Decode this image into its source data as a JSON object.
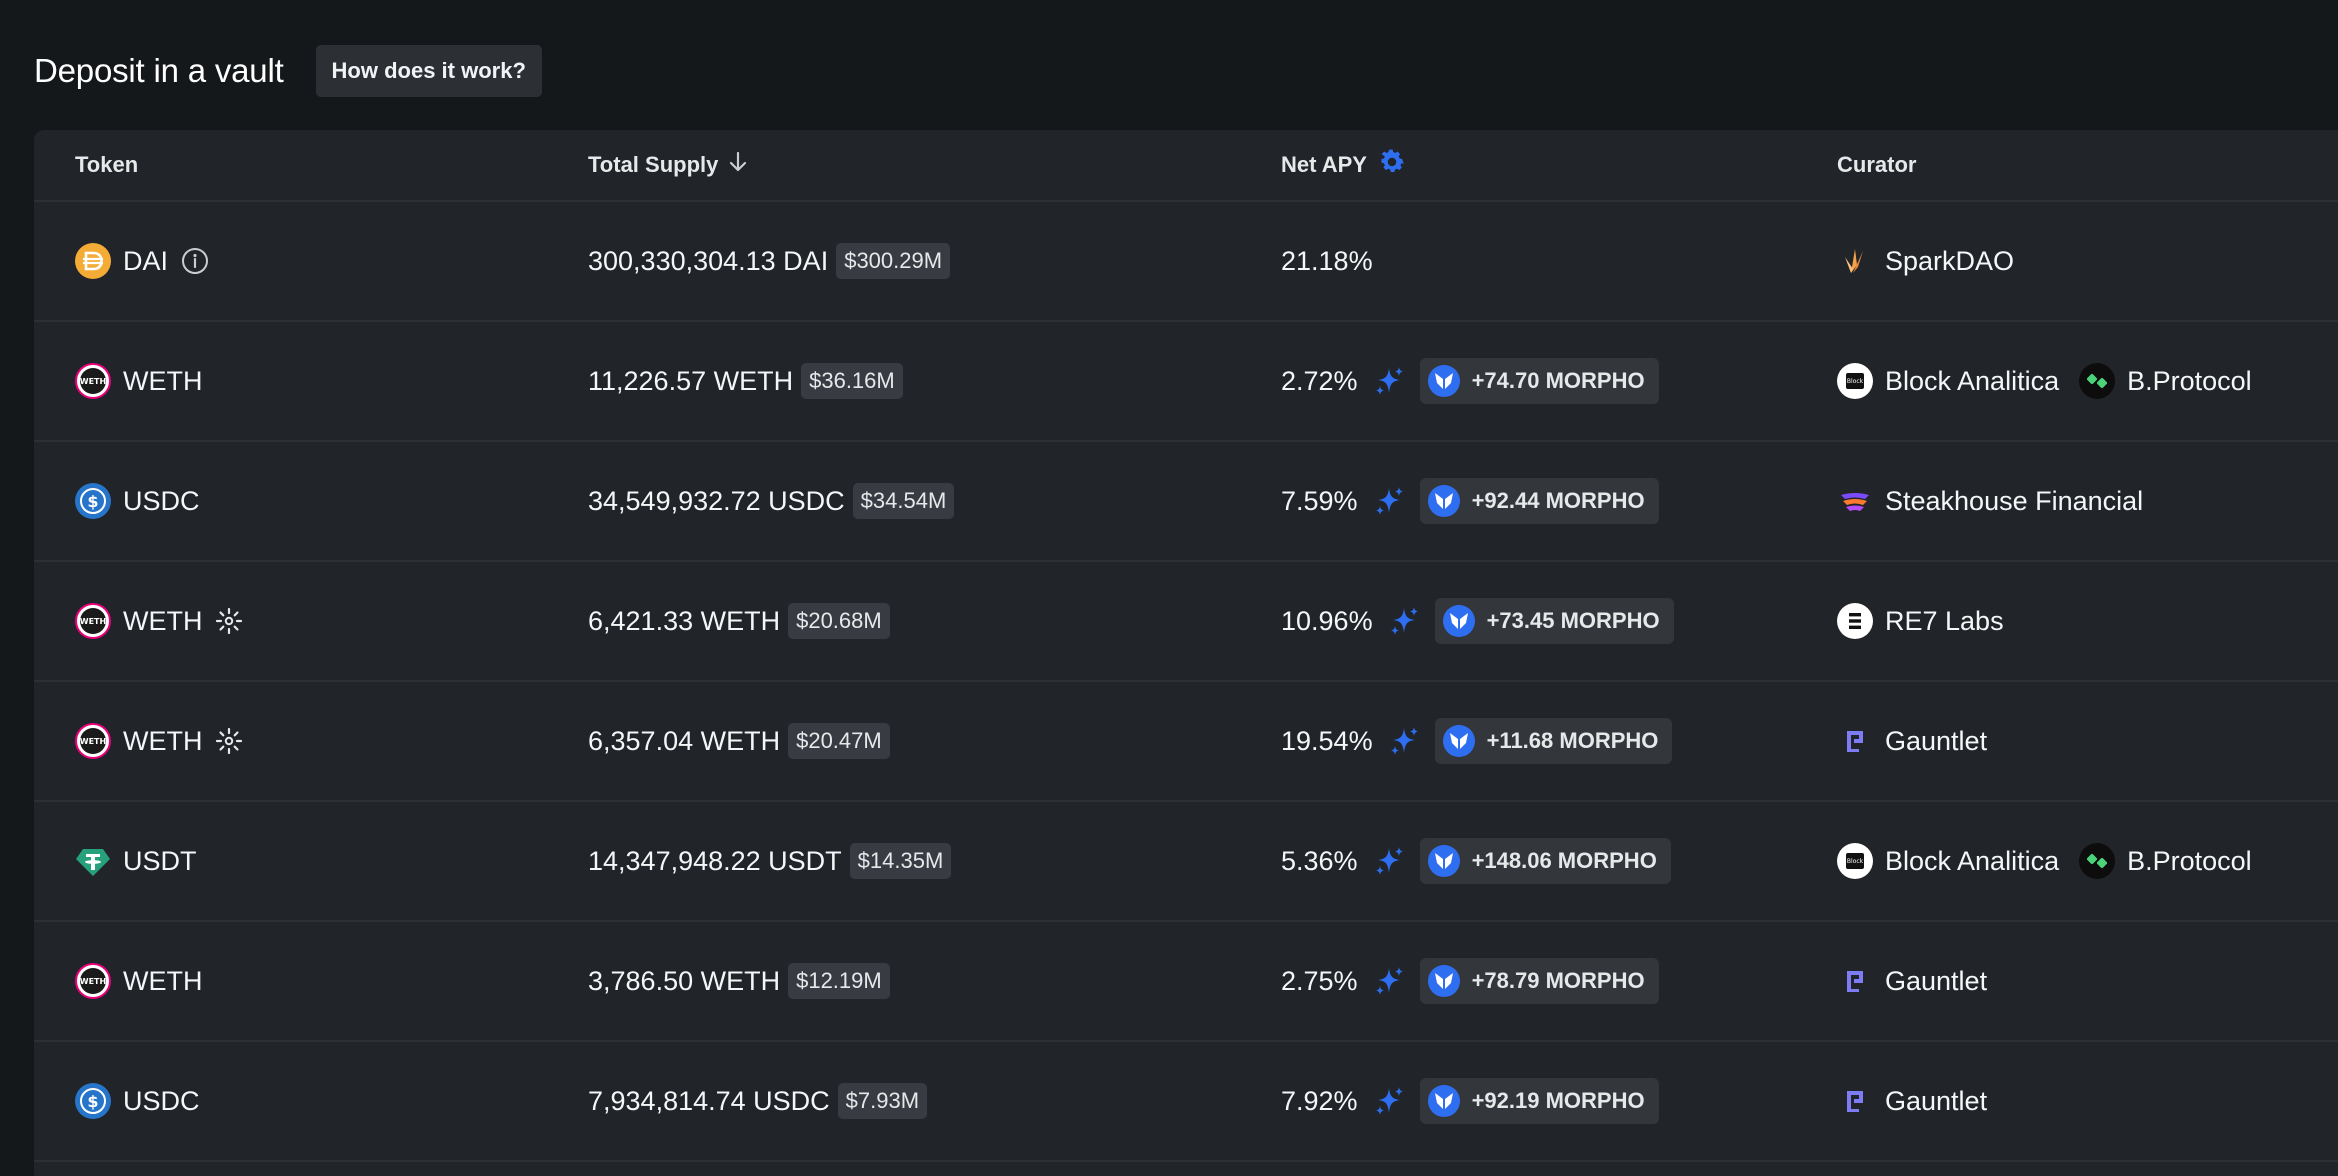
{
  "header": {
    "title": "Deposit in a vault",
    "help_label": "How does it work?"
  },
  "columns": {
    "token": "Token",
    "supply": "Total Supply",
    "apy": "Net APY",
    "curator": "Curator"
  },
  "icons": {
    "sort": "arrow-down-icon",
    "apy_settings": "gear-icon",
    "sparkle": "sparkle-icon",
    "morpho": "morpho-butterfly-icon",
    "info": "info-icon",
    "vault_extra": "sun-burst-icon"
  },
  "colors": {
    "accent_blue": "#2e6ff2",
    "dai": "#f5ac37",
    "usdc": "#2775ca",
    "usdt": "#26a17b",
    "weth_ring": "#e6007a"
  },
  "rows": [
    {
      "token": "DAI",
      "token_icon": "dai",
      "badge": "info",
      "supply": "300,330,304.13 DAI",
      "usd": "$300.29M",
      "apy": "21.18%",
      "reward": "",
      "curators": [
        {
          "name": "SparkDAO",
          "icon": "spark"
        }
      ]
    },
    {
      "token": "WETH",
      "token_icon": "weth",
      "badge": "",
      "supply": "11,226.57 WETH",
      "usd": "$36.16M",
      "apy": "2.72%",
      "reward": "+74.70 MORPHO",
      "curators": [
        {
          "name": "Block Analitica",
          "icon": "block"
        },
        {
          "name": "B.Protocol",
          "icon": "bprotocol"
        }
      ]
    },
    {
      "token": "USDC",
      "token_icon": "usdc",
      "badge": "",
      "supply": "34,549,932.72 USDC",
      "usd": "$34.54M",
      "apy": "7.59%",
      "reward": "+92.44 MORPHO",
      "curators": [
        {
          "name": "Steakhouse Financial",
          "icon": "steakhouse"
        }
      ]
    },
    {
      "token": "WETH",
      "token_icon": "weth",
      "badge": "burst",
      "supply": "6,421.33 WETH",
      "usd": "$20.68M",
      "apy": "10.96%",
      "reward": "+73.45 MORPHO",
      "curators": [
        {
          "name": "RE7 Labs",
          "icon": "re7"
        }
      ]
    },
    {
      "token": "WETH",
      "token_icon": "weth",
      "badge": "burst",
      "supply": "6,357.04 WETH",
      "usd": "$20.47M",
      "apy": "19.54%",
      "reward": "+11.68 MORPHO",
      "curators": [
        {
          "name": "Gauntlet",
          "icon": "gauntlet"
        }
      ]
    },
    {
      "token": "USDT",
      "token_icon": "usdt",
      "badge": "",
      "supply": "14,347,948.22 USDT",
      "usd": "$14.35M",
      "apy": "5.36%",
      "reward": "+148.06 MORPHO",
      "curators": [
        {
          "name": "Block Analitica",
          "icon": "block"
        },
        {
          "name": "B.Protocol",
          "icon": "bprotocol"
        }
      ]
    },
    {
      "token": "WETH",
      "token_icon": "weth",
      "badge": "",
      "supply": "3,786.50 WETH",
      "usd": "$12.19M",
      "apy": "2.75%",
      "reward": "+78.79 MORPHO",
      "curators": [
        {
          "name": "Gauntlet",
          "icon": "gauntlet"
        }
      ]
    },
    {
      "token": "USDC",
      "token_icon": "usdc",
      "badge": "",
      "supply": "7,934,814.74 USDC",
      "usd": "$7.93M",
      "apy": "7.92%",
      "reward": "+92.19 MORPHO",
      "curators": [
        {
          "name": "Gauntlet",
          "icon": "gauntlet"
        }
      ]
    }
  ]
}
